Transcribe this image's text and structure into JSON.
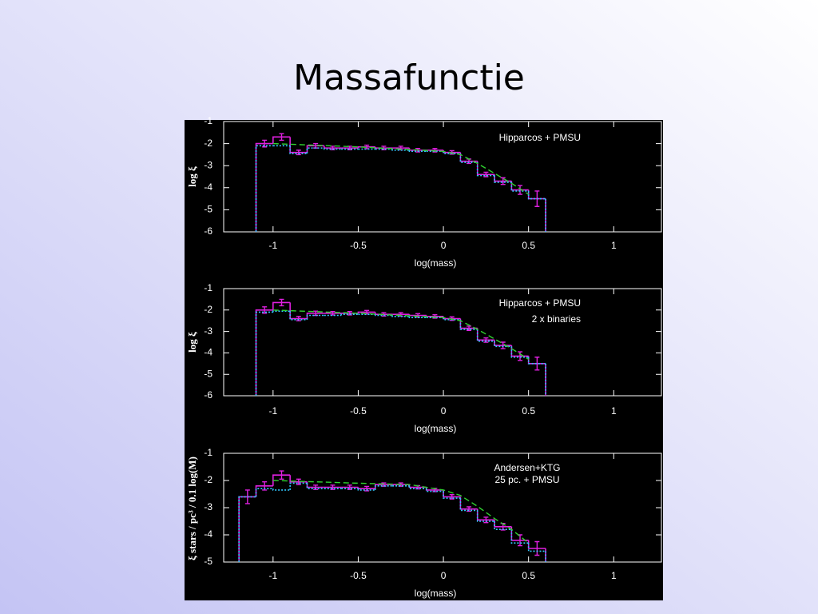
{
  "slide_title": "Massafunctie",
  "chart_data": [
    {
      "type": "histogram",
      "x_label": "log(mass)",
      "y_label": "log ξ",
      "annotations": [
        "Hipparcos + PMSU"
      ],
      "xlim": [
        -1.29,
        1.28
      ],
      "xticks": [
        -1,
        -0.5,
        0,
        0.5,
        1
      ],
      "ylim": [
        -6,
        -1
      ],
      "yticks": [
        -1,
        -2,
        -3,
        -4,
        -5,
        -6
      ],
      "bins": [
        -1.1,
        -1,
        -0.9,
        -0.8,
        -0.7,
        -0.6,
        -0.5,
        -0.4,
        -0.3,
        -0.2,
        -0.1,
        0,
        0.1,
        0.2,
        0.3,
        0.4,
        0.5,
        0.6
      ],
      "series": [
        {
          "color": "#e020e0",
          "style": "solid",
          "values": [
            -2.0,
            -1.7,
            -2.4,
            -2.1,
            -2.2,
            -2.2,
            -2.15,
            -2.2,
            -2.2,
            -2.3,
            -2.3,
            -2.4,
            -2.8,
            -3.4,
            -3.7,
            -4.1,
            -4.5
          ],
          "errors": [
            0.15,
            0.15,
            0.1,
            0.1,
            0.08,
            0.08,
            0.08,
            0.08,
            0.08,
            0.08,
            0.08,
            0.08,
            0.1,
            0.1,
            0.15,
            0.2,
            0.35
          ]
        },
        {
          "color": "#30c8ff",
          "style": "dotted",
          "values": [
            -2.1,
            -2.1,
            -2.45,
            -2.2,
            -2.25,
            -2.25,
            -2.25,
            -2.25,
            -2.3,
            -2.35,
            -2.35,
            -2.45,
            -2.85,
            -3.45,
            -3.75,
            -4.15,
            -4.5
          ]
        }
      ],
      "fit": {
        "color": "#30d030",
        "style": "dashed",
        "x": [
          -1.0,
          -0.5,
          0,
          0.1,
          0.2,
          0.3,
          0.4,
          0.5
        ],
        "values": [
          -2.0,
          -2.15,
          -2.35,
          -2.5,
          -2.9,
          -3.35,
          -3.8,
          -4.3
        ]
      }
    },
    {
      "type": "histogram",
      "x_label": "log(mass)",
      "y_label": "log ξ",
      "annotations": [
        "Hipparcos + PMSU",
        "2 x binaries"
      ],
      "xlim": [
        -1.29,
        1.28
      ],
      "xticks": [
        -1,
        -0.5,
        0,
        0.5,
        1
      ],
      "ylim": [
        -6,
        -1
      ],
      "yticks": [
        -1,
        -2,
        -3,
        -4,
        -5,
        -6
      ],
      "bins": [
        -1.1,
        -1,
        -0.9,
        -0.8,
        -0.7,
        -0.6,
        -0.5,
        -0.4,
        -0.3,
        -0.2,
        -0.1,
        0,
        0.1,
        0.2,
        0.3,
        0.4,
        0.5,
        0.6
      ],
      "series": [
        {
          "color": "#e020e0",
          "style": "solid",
          "values": [
            -2.0,
            -1.65,
            -2.4,
            -2.15,
            -2.15,
            -2.15,
            -2.1,
            -2.2,
            -2.2,
            -2.25,
            -2.3,
            -2.4,
            -2.85,
            -3.4,
            -3.65,
            -4.15,
            -4.5
          ],
          "errors": [
            0.15,
            0.15,
            0.1,
            0.1,
            0.08,
            0.08,
            0.08,
            0.08,
            0.08,
            0.08,
            0.08,
            0.08,
            0.1,
            0.1,
            0.15,
            0.2,
            0.3
          ]
        },
        {
          "color": "#30c8ff",
          "style": "dotted",
          "values": [
            -2.1,
            -2.05,
            -2.45,
            -2.25,
            -2.25,
            -2.2,
            -2.2,
            -2.25,
            -2.3,
            -2.35,
            -2.35,
            -2.45,
            -2.9,
            -3.45,
            -3.7,
            -4.2,
            -4.5
          ]
        }
      ],
      "fit": {
        "color": "#30d030",
        "style": "dashed",
        "x": [
          -1.0,
          -0.5,
          0,
          0.1,
          0.2,
          0.3,
          0.4,
          0.5
        ],
        "values": [
          -2.0,
          -2.15,
          -2.35,
          -2.5,
          -2.9,
          -3.35,
          -3.8,
          -4.3
        ]
      }
    },
    {
      "type": "histogram",
      "x_label": "log(mass)",
      "y_label": "ξ stars / pc³ / 0.1 log(M)",
      "annotations": [
        "Andersen+KTG",
        "25 pc. + PMSU"
      ],
      "xlim": [
        -1.29,
        1.28
      ],
      "xticks": [
        -1,
        -0.5,
        0,
        0.5,
        1
      ],
      "ylim": [
        -5,
        -1
      ],
      "yticks": [
        -1,
        -2,
        -3,
        -4,
        -5
      ],
      "bins": [
        -1.2,
        -1.1,
        -1,
        -0.9,
        -0.8,
        -0.7,
        -0.6,
        -0.5,
        -0.4,
        -0.3,
        -0.2,
        -0.1,
        0,
        0.1,
        0.2,
        0.3,
        0.4,
        0.5,
        0.6
      ],
      "series": [
        {
          "color": "#e020e0",
          "style": "solid",
          "values": [
            -2.6,
            -2.2,
            -1.8,
            -2.05,
            -2.25,
            -2.25,
            -2.25,
            -2.3,
            -2.15,
            -2.15,
            -2.25,
            -2.35,
            -2.6,
            -3.05,
            -3.45,
            -3.7,
            -4.2,
            -4.5
          ],
          "errors": [
            0.25,
            0.15,
            0.15,
            0.1,
            0.08,
            0.08,
            0.08,
            0.08,
            0.06,
            0.06,
            0.06,
            0.06,
            0.08,
            0.08,
            0.1,
            0.12,
            0.2,
            0.25
          ]
        },
        {
          "color": "#30c8ff",
          "style": "dotted",
          "values": [
            -2.6,
            -2.3,
            -2.35,
            -2.1,
            -2.3,
            -2.3,
            -2.3,
            -2.35,
            -2.2,
            -2.2,
            -2.3,
            -2.4,
            -2.65,
            -3.1,
            -3.5,
            -3.8,
            -4.3,
            -4.6
          ]
        }
      ],
      "fit": {
        "color": "#30d030",
        "style": "dashed",
        "x": [
          -1.0,
          -0.5,
          -0.2,
          0,
          0.1,
          0.2,
          0.3,
          0.4,
          0.5
        ],
        "values": [
          -2.0,
          -2.1,
          -2.15,
          -2.35,
          -2.55,
          -2.95,
          -3.4,
          -3.8,
          -4.3
        ]
      }
    }
  ]
}
